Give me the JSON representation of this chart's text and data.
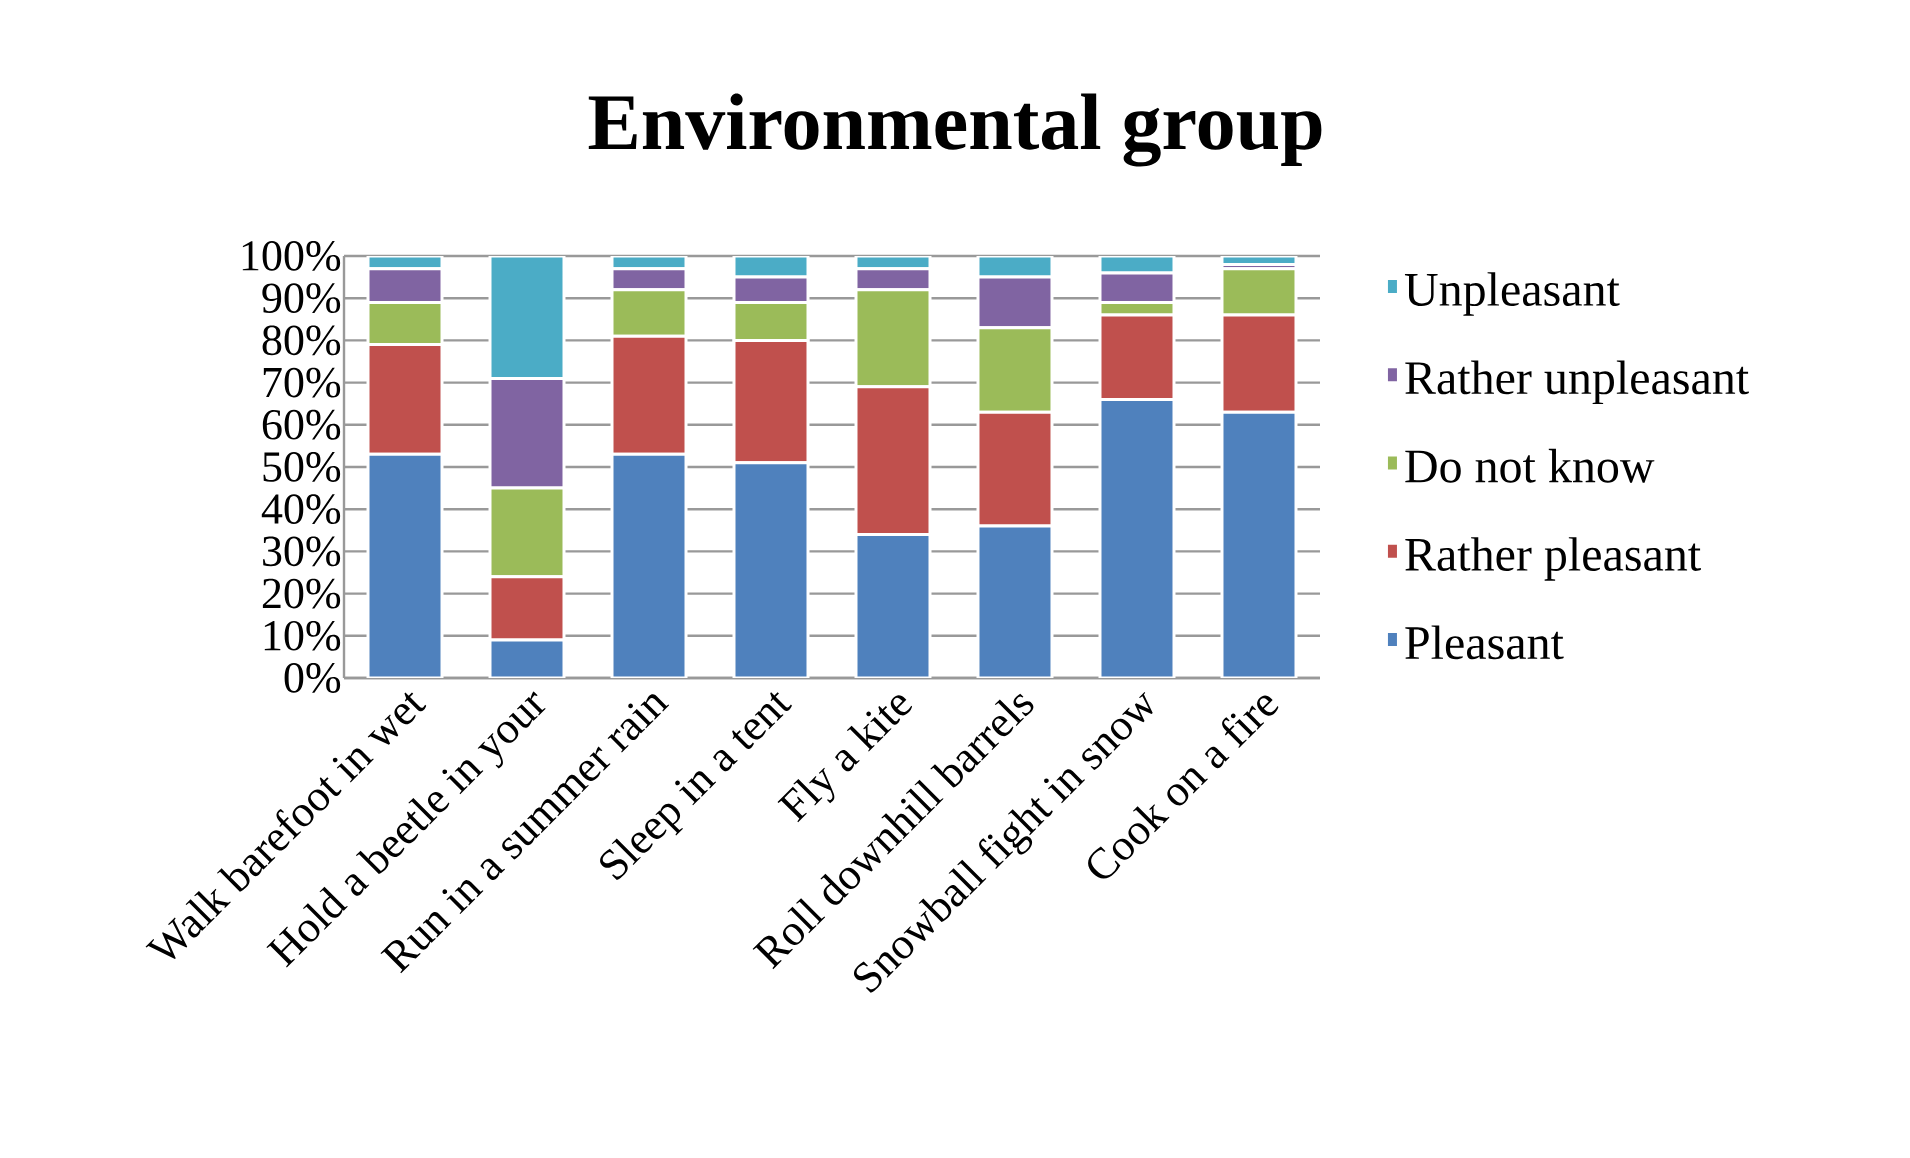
{
  "chart_data": {
    "type": "bar",
    "stacked": true,
    "title": "Environmental group",
    "categories": [
      "Walk barefoot in wet",
      "Hold a beetle in your",
      "Run in a summer rain",
      "Sleep in a tent",
      "Fly a kite",
      "Roll downhill barrels",
      "Snowball fight in snow",
      "Cook on a fire"
    ],
    "series": [
      {
        "name": "Pleasant",
        "color": "#4f81bd",
        "values": [
          53,
          9,
          53,
          51,
          34,
          36,
          66,
          63
        ]
      },
      {
        "name": "Rather pleasant",
        "color": "#c0504d",
        "values": [
          26,
          15,
          28,
          29,
          35,
          27,
          20,
          23
        ]
      },
      {
        "name": "Do not know",
        "color": "#9bbb59",
        "values": [
          10,
          21,
          11,
          9,
          23,
          20,
          3,
          11
        ]
      },
      {
        "name": "Rather unpleasant",
        "color": "#8064a2",
        "values": [
          8,
          26,
          5,
          6,
          5,
          12,
          7,
          1
        ]
      },
      {
        "name": "Unpleasant",
        "color": "#4bacc6",
        "values": [
          3,
          29,
          3,
          5,
          3,
          5,
          4,
          2
        ]
      }
    ],
    "ylim": [
      0,
      100
    ],
    "yticks": [
      {
        "value": 0,
        "label": "0%"
      },
      {
        "value": 10,
        "label": "10%"
      },
      {
        "value": 20,
        "label": "20%"
      },
      {
        "value": 30,
        "label": "30%"
      },
      {
        "value": 40,
        "label": "40%"
      },
      {
        "value": 50,
        "label": "50%"
      },
      {
        "value": 60,
        "label": "60%"
      },
      {
        "value": 70,
        "label": "70%"
      },
      {
        "value": 80,
        "label": "80%"
      },
      {
        "value": 90,
        "label": "90%"
      },
      {
        "value": 100,
        "label": "100%"
      }
    ],
    "grid": "y",
    "legend": "right"
  }
}
